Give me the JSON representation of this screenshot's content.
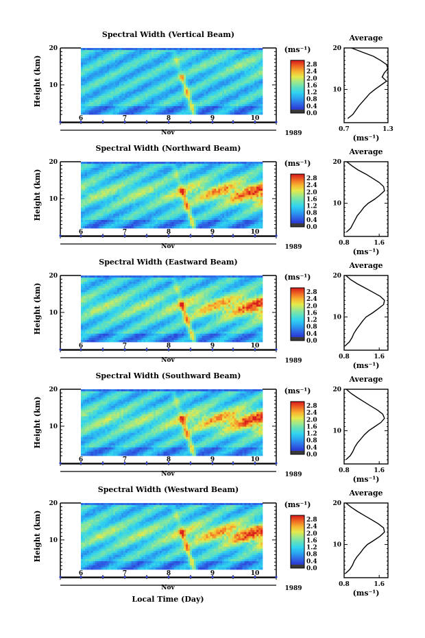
{
  "figure": {
    "xlabel": "Local Time (Day)",
    "colorbar_unit": "(ms⁻¹)",
    "colorbar_ticks": [
      "0.0",
      "0.4",
      "0.8",
      "1.2",
      "1.6",
      "2.0",
      "2.4",
      "2.8"
    ],
    "x_ticks": [
      "6",
      "7",
      "8",
      "9",
      "10"
    ],
    "month": "Nov",
    "year": "1989",
    "colors": {
      "colormap": [
        "#3a3a8c",
        "#2b3fd6",
        "#2f6fe8",
        "#2aa7f0",
        "#30d2f0",
        "#5ee0c0",
        "#9ee88a",
        "#e6e94a",
        "#f7b531",
        "#f06a24",
        "#d8201c"
      ]
    }
  },
  "chart_data": [
    {
      "type": "heatmap",
      "title": "Spectral Width (Vertical Beam)",
      "ylabel": "Height (km)",
      "y_ticks": [
        "20",
        "10"
      ],
      "ylim": [
        2,
        20
      ],
      "xlim": [
        5.5,
        10.5
      ],
      "xlabel": "Nov",
      "colorbar_range": [
        0.0,
        2.8
      ],
      "average_profile": {
        "title": "Average",
        "xlabel": "(ms⁻¹)",
        "x_ticks": [
          "0.7",
          "1.3"
        ],
        "xlim": [
          0.7,
          1.3
        ],
        "height_km": [
          3,
          4,
          5,
          6,
          7,
          8,
          9,
          10,
          11,
          12,
          13,
          14,
          15,
          16,
          17,
          18,
          19,
          20
        ],
        "value": [
          0.75,
          0.82,
          0.86,
          0.9,
          0.95,
          1.0,
          1.05,
          1.12,
          1.2,
          1.28,
          1.22,
          1.25,
          1.3,
          1.28,
          1.2,
          1.1,
          0.95,
          0.8
        ]
      }
    },
    {
      "type": "heatmap",
      "title": "Spectral Width (Northward Beam)",
      "ylabel": "Height (km)",
      "y_ticks": [
        "20",
        "10"
      ],
      "ylim": [
        2,
        20
      ],
      "xlim": [
        5.5,
        10.5
      ],
      "xlabel": "Nov",
      "colorbar_range": [
        0.0,
        2.8
      ],
      "average_profile": {
        "title": "Average",
        "xlabel": "(ms⁻¹)",
        "x_ticks": [
          "0.8",
          "1.6"
        ],
        "xlim": [
          0.8,
          1.8
        ],
        "height_km": [
          3,
          4,
          5,
          6,
          7,
          8,
          9,
          10,
          11,
          12,
          13,
          14,
          15,
          16,
          17,
          18,
          19,
          20
        ],
        "value": [
          0.85,
          0.95,
          1.0,
          1.05,
          1.1,
          1.18,
          1.25,
          1.35,
          1.5,
          1.62,
          1.72,
          1.7,
          1.6,
          1.45,
          1.3,
          1.12,
          0.98,
          0.86
        ]
      }
    },
    {
      "type": "heatmap",
      "title": "Spectral Width (Eastward Beam)",
      "ylabel": "Height (km)",
      "y_ticks": [
        "20",
        "10"
      ],
      "ylim": [
        2,
        20
      ],
      "xlim": [
        5.5,
        10.5
      ],
      "xlabel": "Nov",
      "colorbar_range": [
        0.0,
        2.8
      ],
      "average_profile": {
        "title": "Average",
        "xlabel": "(ms⁻¹)",
        "x_ticks": [
          "0.8",
          "1.6"
        ],
        "xlim": [
          0.8,
          1.8
        ],
        "height_km": [
          3,
          4,
          5,
          6,
          7,
          8,
          9,
          10,
          11,
          12,
          13,
          14,
          15,
          16,
          17,
          18,
          19,
          20
        ],
        "value": [
          0.82,
          0.92,
          0.98,
          1.02,
          1.08,
          1.15,
          1.22,
          1.3,
          1.45,
          1.58,
          1.7,
          1.72,
          1.62,
          1.45,
          1.28,
          1.1,
          0.95,
          0.84
        ]
      }
    },
    {
      "type": "heatmap",
      "title": "Spectral Width (Southward Beam)",
      "ylabel": "Height (km)",
      "y_ticks": [
        "20",
        "10"
      ],
      "ylim": [
        2,
        20
      ],
      "xlim": [
        5.5,
        10.5
      ],
      "xlabel": "Nov",
      "colorbar_range": [
        0.0,
        2.8
      ],
      "average_profile": {
        "title": "Average",
        "xlabel": "(ms⁻¹)",
        "x_ticks": [
          "0.8",
          "1.6"
        ],
        "xlim": [
          0.8,
          1.8
        ],
        "height_km": [
          3,
          4,
          5,
          6,
          7,
          8,
          9,
          10,
          11,
          12,
          13,
          14,
          15,
          16,
          17,
          18,
          19,
          20
        ],
        "value": [
          0.84,
          0.94,
          1.0,
          1.04,
          1.1,
          1.18,
          1.26,
          1.36,
          1.5,
          1.64,
          1.72,
          1.68,
          1.56,
          1.4,
          1.25,
          1.1,
          0.96,
          0.85
        ]
      }
    },
    {
      "type": "heatmap",
      "title": "Spectral Width (Westward Beam)",
      "ylabel": "Height (km)",
      "y_ticks": [
        "20",
        "10"
      ],
      "ylim": [
        2,
        20
      ],
      "xlim": [
        5.5,
        10.5
      ],
      "xlabel": "Nov",
      "colorbar_range": [
        0.0,
        2.8
      ],
      "average_profile": {
        "title": "Average",
        "xlabel": "(ms⁻¹)",
        "x_ticks": [
          "0.8",
          "1.6"
        ],
        "xlim": [
          0.8,
          1.8
        ],
        "height_km": [
          3,
          4,
          5,
          6,
          7,
          8,
          9,
          10,
          11,
          12,
          13,
          14,
          15,
          16,
          17,
          18,
          19,
          20
        ],
        "value": [
          0.83,
          0.93,
          0.99,
          1.03,
          1.09,
          1.17,
          1.24,
          1.33,
          1.48,
          1.62,
          1.72,
          1.7,
          1.58,
          1.42,
          1.26,
          1.1,
          0.96,
          0.84
        ]
      }
    }
  ]
}
